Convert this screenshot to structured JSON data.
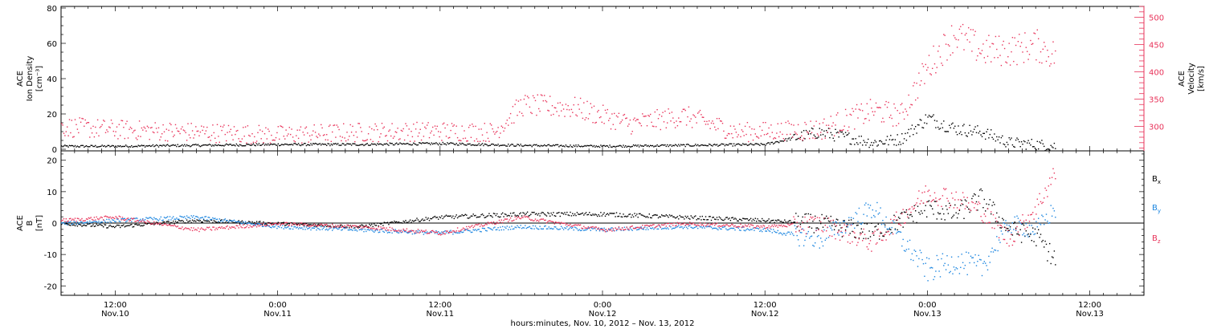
{
  "chart_data": [
    {
      "type": "scatter",
      "ylabel_left_lines": [
        "ACE",
        "Ion Density",
        "[cm⁻³]"
      ],
      "ylabel_right_lines": [
        "ACE",
        "Velocity",
        "[km/s]"
      ],
      "ylim_left": [
        0,
        80
      ],
      "ylim_right": [
        255,
        520
      ],
      "yticks_left": [
        0,
        20,
        40,
        60,
        80
      ],
      "yticks_right": [
        300,
        350,
        400,
        450,
        500
      ],
      "series": [
        {
          "color": "#000000",
          "axis": "left",
          "x": [
            "Nov 10 08:00",
            "Nov 10 12:00",
            "Nov 10 18:00",
            "Nov 11 00:00",
            "Nov 11 06:00",
            "Nov 11 12:00",
            "Nov 11 18:00",
            "Nov 12 00:00",
            "Nov 12 06:00",
            "Nov 12 12:00",
            "Nov 12 16:00",
            "Nov 12 20:00",
            "Nov 12 22:00",
            "Nov 13 00:00",
            "Nov 13 02:00",
            "Nov 13 04:00",
            "Nov 13 06:00",
            "Nov 13 08:00",
            "Nov 13 09:30"
          ],
          "y": [
            2,
            2,
            2.5,
            3,
            3,
            3.5,
            2.5,
            2,
            2.5,
            3,
            10,
            4,
            6,
            18,
            12,
            10,
            4,
            3,
            2
          ]
        },
        {
          "color": "#e8335a",
          "axis": "right",
          "x": [
            "Nov 10 08:00",
            "Nov 10 12:00",
            "Nov 10 18:00",
            "Nov 11 00:00",
            "Nov 11 06:00",
            "Nov 11 12:00",
            "Nov 11 16:00",
            "Nov 11 18:00",
            "Nov 11 22:00",
            "Nov 12 02:00",
            "Nov 12 06:00",
            "Nov 12 10:00",
            "Nov 12 16:00",
            "Nov 12 20:00",
            "Nov 12 22:00",
            "Nov 13 00:00",
            "Nov 13 02:00",
            "Nov 13 04:00",
            "Nov 13 06:00",
            "Nov 13 08:00",
            "Nov 13 09:30"
          ],
          "y": [
            300,
            295,
            290,
            285,
            290,
            292,
            290,
            340,
            335,
            305,
            320,
            290,
            295,
            330,
            320,
            410,
            470,
            440,
            440,
            450,
            430
          ]
        }
      ]
    },
    {
      "type": "scatter",
      "ylabel_lines": [
        "ACE",
        "B",
        "[nT]"
      ],
      "ylim": [
        -23,
        23
      ],
      "yticks": [
        -20,
        -10,
        0,
        10,
        20
      ],
      "legend": [
        "B",
        "B",
        "B"
      ],
      "legend_subscripts": [
        "x",
        "y",
        "z"
      ],
      "legend_placement": "right",
      "series": [
        {
          "name": "Bx",
          "color": "#000000",
          "x": [
            "Nov 10 08:00",
            "Nov 10 12:00",
            "Nov 10 18:00",
            "Nov 11 00:00",
            "Nov 11 06:00",
            "Nov 11 12:00",
            "Nov 11 18:00",
            "Nov 12 00:00",
            "Nov 12 06:00",
            "Nov 12 12:00",
            "Nov 12 16:00",
            "Nov 12 20:00",
            "Nov 13 00:00",
            "Nov 13 02:00",
            "Nov 13 04:00",
            "Nov 13 06:00",
            "Nov 13 08:00",
            "Nov 13 09:30"
          ],
          "y": [
            0,
            -1,
            1,
            0,
            -1,
            2,
            3,
            3,
            2,
            1,
            0,
            -3,
            5,
            3,
            8,
            -2,
            -4,
            -12
          ]
        },
        {
          "name": "By",
          "color": "#1c86e0",
          "x": [
            "Nov 10 08:00",
            "Nov 10 12:00",
            "Nov 10 18:00",
            "Nov 11 00:00",
            "Nov 11 06:00",
            "Nov 11 12:00",
            "Nov 11 18:00",
            "Nov 12 00:00",
            "Nov 12 06:00",
            "Nov 12 12:00",
            "Nov 12 16:00",
            "Nov 12 20:00",
            "Nov 13 00:00",
            "Nov 13 02:00",
            "Nov 13 04:00",
            "Nov 13 06:00",
            "Nov 13 08:00",
            "Nov 13 09:30"
          ],
          "y": [
            0,
            1,
            2,
            -1,
            -2,
            -3,
            -1,
            -2,
            -1,
            -2,
            -5,
            5,
            -15,
            -12,
            -14,
            0,
            -2,
            5
          ]
        },
        {
          "name": "Bz",
          "color": "#e8335a",
          "x": [
            "Nov 10 08:00",
            "Nov 10 12:00",
            "Nov 10 18:00",
            "Nov 11 00:00",
            "Nov 11 06:00",
            "Nov 11 12:00",
            "Nov 11 18:00",
            "Nov 12 00:00",
            "Nov 12 06:00",
            "Nov 12 12:00",
            "Nov 12 16:00",
            "Nov 12 20:00",
            "Nov 13 00:00",
            "Nov 13 02:00",
            "Nov 13 04:00",
            "Nov 13 06:00",
            "Nov 13 08:00",
            "Nov 13 09:30"
          ],
          "y": [
            1,
            2,
            -2,
            0,
            -1,
            -3,
            2,
            -2,
            0,
            -1,
            0,
            -6,
            10,
            8,
            4,
            -5,
            5,
            17
          ]
        }
      ]
    }
  ],
  "xaxis": {
    "xlim": [
      "Nov 10 08:00",
      "Nov 13 16:00"
    ],
    "tick_labels": [
      {
        "time": "12:00",
        "date": "Nov.10"
      },
      {
        "time": "0:00",
        "date": "Nov.11"
      },
      {
        "time": "12:00",
        "date": "Nov.11"
      },
      {
        "time": "0:00",
        "date": "Nov.12"
      },
      {
        "time": "12:00",
        "date": "Nov.12"
      },
      {
        "time": "0:00",
        "date": "Nov.13"
      },
      {
        "time": "12:00",
        "date": "Nov.13"
      }
    ],
    "label": "hours:minutes, Nov. 10, 2012 – Nov. 13, 2012"
  },
  "colors": {
    "density": "#000000",
    "velocity": "#e8335a",
    "bx": "#000000",
    "by": "#1c86e0",
    "bz": "#e8335a"
  }
}
